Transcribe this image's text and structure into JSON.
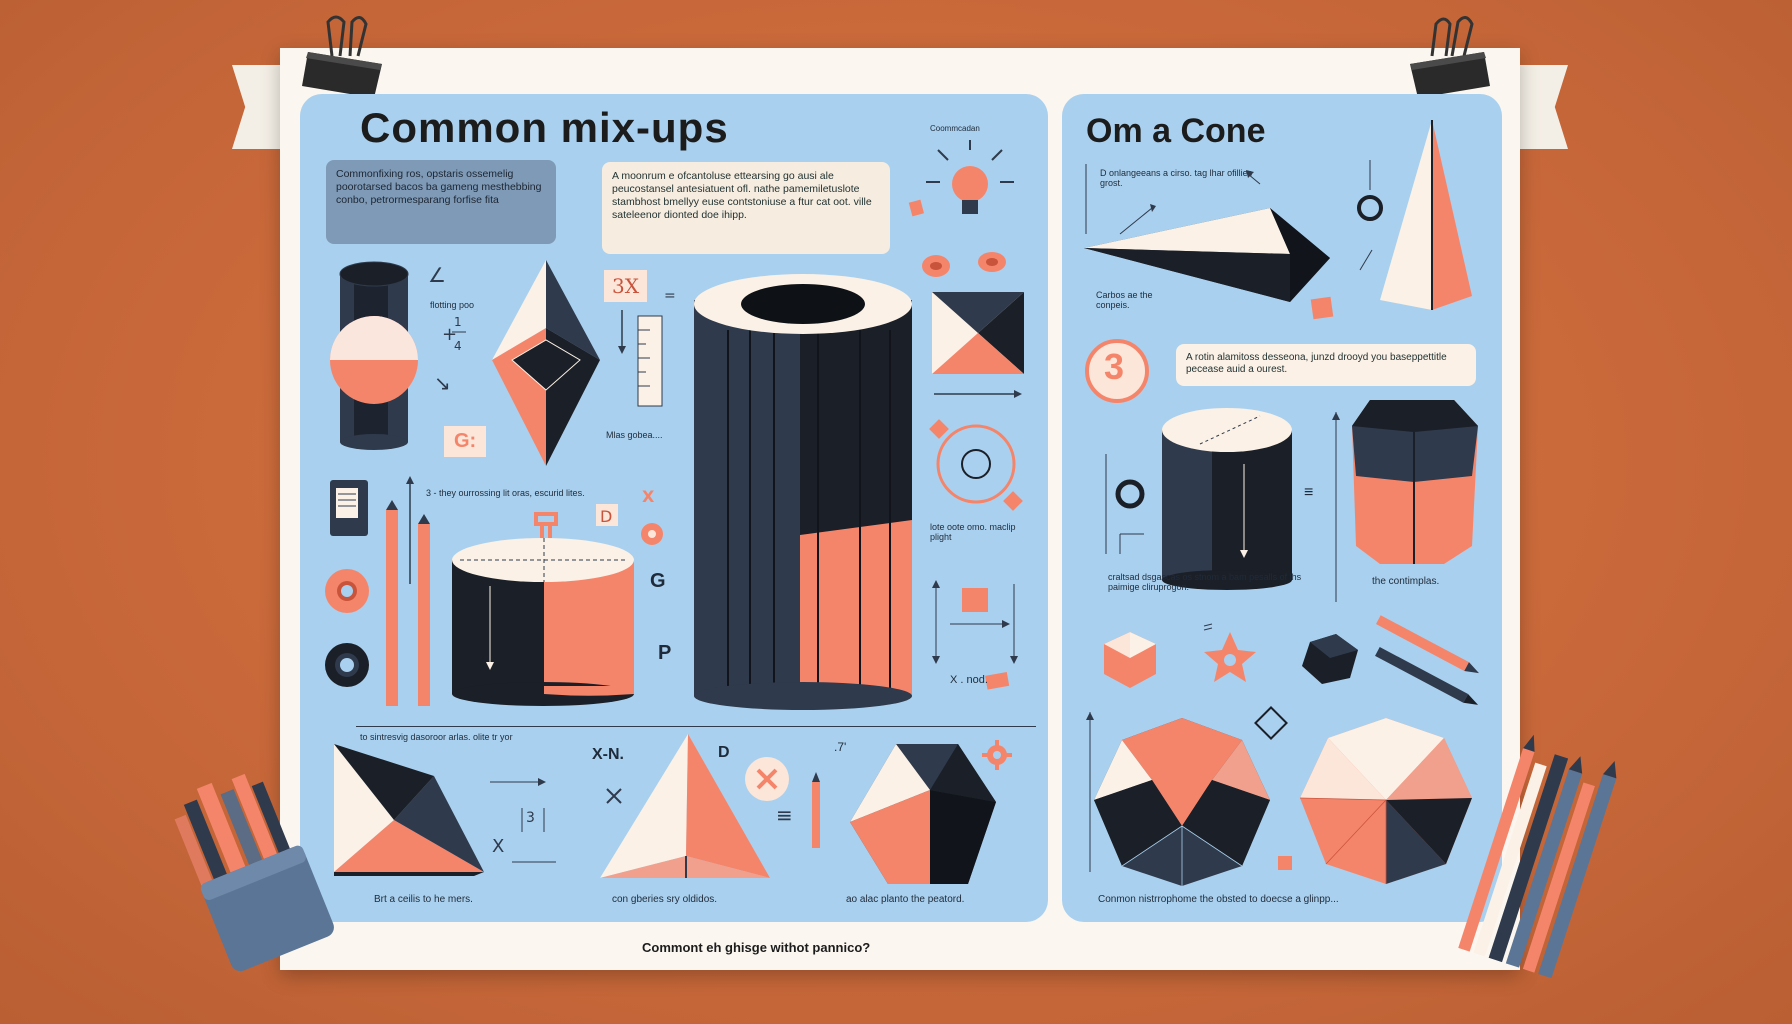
{
  "left_panel": {
    "title": "Common mix-ups",
    "card_dark_text": "Commonfixing ros, opstaris ossemelig poorotarsed bacos ba gameng mesthebbing conbo, petrormesparang forfise fita",
    "card_light_text": "A moonrum e ofcantoluse ettearsing go ausi ale peucostansel antesiatuent ofl. nathe pamemiletuslote stambhost bmellyy euse contstoniuse a ftur cat oot. ville sateleenor dionted doe ihipp.",
    "bulb_label": "Coommcadan",
    "label_3x": "3X",
    "label_flotting": "flotting poo",
    "label_g_box": "G:",
    "label_mlas": "Mlas gobea....",
    "label_underline": "3 - they ourrossing lit oras, escurid lites.",
    "label_lote": "lote oote omo. maclip plight",
    "label_g": "G",
    "label_p": "P",
    "label_xnod": "X . nod.",
    "label_bottom_note": "to sintresvig dasoroor arlas. olite tr yor",
    "label_xn": "X-N.",
    "label_d": "D",
    "caption_1": "Brt a ceilis to he mers.",
    "caption_2": "con gberies sry oldidos.",
    "caption_3": "ao alac planto the peatord."
  },
  "right_panel": {
    "title": "Om a Cone",
    "label_top": "D  onlangeeans a cirso. tag lhar ofillies grost.",
    "label_carbon": "Carbos ae the conpeis.",
    "number_badge": "3",
    "card_text": "A rotin alamitoss desseona, junzd drooyd you baseppettitle pecease auid a ourest.",
    "label_middle": "craltsad dsgascas os stnom a bam pesalls of lhs paimige cliruprogon.",
    "label_contimplas": "the contimplas.",
    "caption_bottom": "Conmon nistrrophome the obsted to doecse a glinpp..."
  },
  "footer_text": "Commont eh ghisge withot pannico?",
  "colors": {
    "background": "#c8693a",
    "panel": "#a9d0ee",
    "coral": "#f5856a",
    "navy": "#2f3a4c",
    "cream": "#fbf1e6"
  }
}
